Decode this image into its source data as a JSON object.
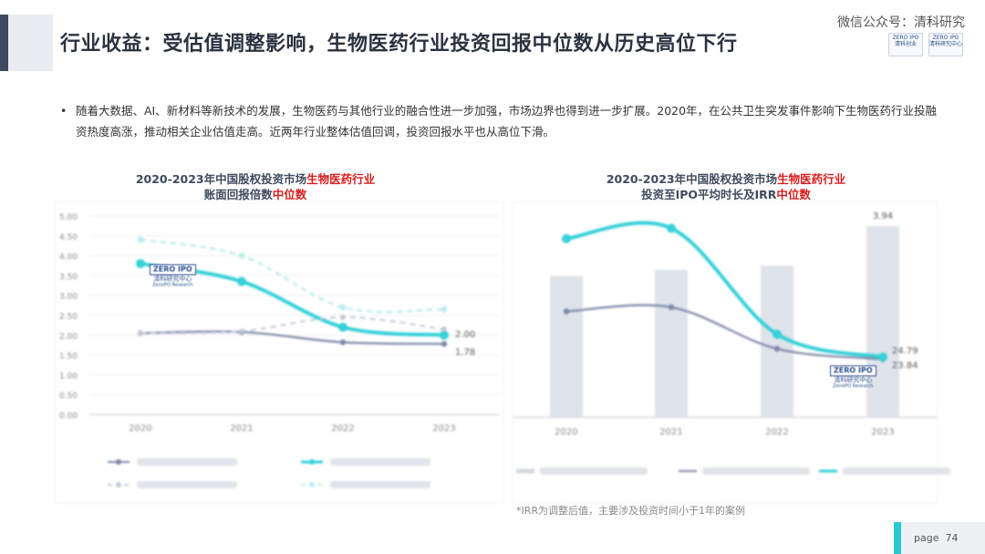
{
  "header": {
    "title": "行业收益：受估值调整影响，生物医药行业投资回报中位数从历史高位下行",
    "watermark": "微信公众号：清科研究",
    "logo1_line1": "ZERO IPO",
    "logo1_line2": "清科创业",
    "logo2_line1": "ZERO IPO",
    "logo2_line2": "清科研究中心"
  },
  "bullet": {
    "dot": "•",
    "text": "随着大数据、AI、新材料等新技术的发展，生物医药与其他行业的融合性进一步加强，市场边界也得到进一步扩展。2020年，在公共卫生突发事件影响下生物医药行业投融资热度高涨，推动相关企业估值走高。近两年行业整体估值回调，投资回报水平也从高位下滑。"
  },
  "chart_titles": {
    "left_l1_a": "2020-2023年中国股权投资市场",
    "left_l1_b": "生物医药行业",
    "left_l2_a": "账面回报倍数",
    "left_l2_b": "中位数",
    "right_l1_a": "2020-2023年中国股权投资市场",
    "right_l1_b": "生物医药行业",
    "right_l2_a": "投资至IPO平均时长及IRR",
    "right_l2_b": "中位数"
  },
  "logo_badge": {
    "mark": "ZERO IPO",
    "cn": "清科研究中心",
    "en": "ZeroIPO Research"
  },
  "footnote": "*IRR为调整后值，主要涉及投资时间小于1年的案例",
  "page": {
    "label": "page",
    "number": "74"
  },
  "colors": {
    "cyan": "#35d0d8",
    "navy": "#7b86a6",
    "bar": "#dfe3ea",
    "accent_red": "#d81e1e"
  },
  "chart_data": [
    {
      "type": "line",
      "x": [
        "2020",
        "2021",
        "2022",
        "2023"
      ],
      "ylim": [
        0,
        5
      ],
      "yticks": [
        "0.00",
        "0.50",
        "1.00",
        "1.50",
        "2.00",
        "2.50",
        "3.00",
        "3.50",
        "4.00",
        "4.50",
        "5.00"
      ],
      "series": [
        {
          "values": [
            2.05,
            2.08,
            1.82,
            1.78
          ],
          "style": "solid-navy"
        },
        {
          "values": [
            3.8,
            3.35,
            2.2,
            2.0
          ],
          "style": "solid-cyan"
        },
        {
          "values": [
            2.05,
            2.1,
            2.45,
            2.15
          ],
          "style": "dashed-navy-light"
        },
        {
          "values": [
            4.4,
            4.0,
            2.7,
            2.65
          ],
          "style": "dashed-cyan-light"
        }
      ],
      "data_labels": [
        {
          "series": 1,
          "index": 3,
          "text": "2.00"
        },
        {
          "series": 0,
          "index": 3,
          "text": "1.78"
        }
      ],
      "legend": "bottom"
    },
    {
      "type": "bar",
      "categories": [
        "2020",
        "2021",
        "2022",
        "2023"
      ],
      "ylim": [
        0,
        5
      ],
      "bars": {
        "values": [
          3.4,
          3.55,
          3.65,
          4.6
        ]
      },
      "series": [
        {
          "values": [
            2.55,
            2.65,
            1.65,
            1.4
          ],
          "style": "line-navy"
        },
        {
          "values": [
            4.3,
            4.55,
            2.0,
            1.45
          ],
          "style": "line-cyan"
        }
      ],
      "data_labels": [
        {
          "target": "bar",
          "index": 3,
          "text": "3.94"
        },
        {
          "series": 0,
          "index": 3,
          "text": "24.79"
        },
        {
          "series": 1,
          "index": 3,
          "text": "23.84"
        }
      ],
      "legend": "bottom"
    }
  ]
}
